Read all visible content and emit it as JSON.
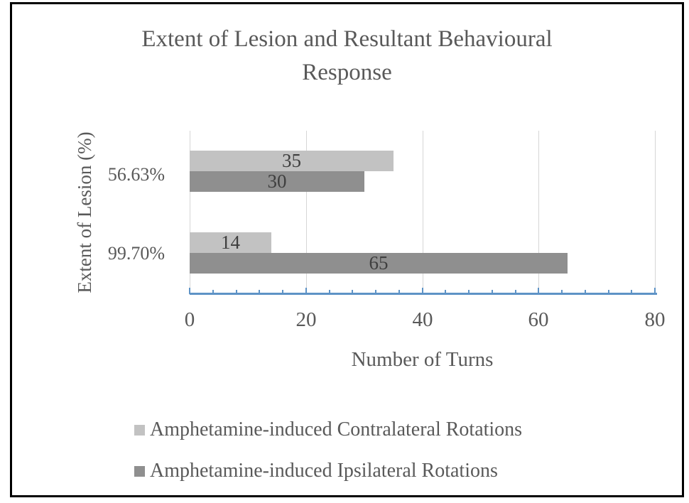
{
  "chart_data": {
    "type": "bar",
    "orientation": "horizontal",
    "title": "Extent of Lesion and Resultant Behavioural Response",
    "title_lines": [
      "Extent of Lesion and Resultant Behavioural",
      "Response"
    ],
    "categories": [
      "56.63%",
      "99.70%"
    ],
    "series": [
      {
        "name": "Amphetamine-induced Contralateral Rotations",
        "values": [
          35,
          14
        ],
        "color": "#c2c2c2"
      },
      {
        "name": "Amphetamine-induced Ipsilateral Rotations",
        "values": [
          30,
          65
        ],
        "color": "#8f8f8f"
      }
    ],
    "data_labels": [
      [
        "35",
        "14"
      ],
      [
        "30",
        "65"
      ]
    ],
    "xlabel": "Number of Turns",
    "ylabel": "Extent of Lesion (%)",
    "xlim": [
      0,
      80
    ],
    "x_ticks": [
      0,
      20,
      40,
      60,
      80
    ],
    "x_minor_unit": 4,
    "grid": "vertical-major",
    "legend_position": "bottom",
    "colors": {
      "series_light": "#c2c2c2",
      "series_dark": "#8f8f8f",
      "axis_line": "#5e93c6",
      "gridline": "#d6d6d6",
      "text": "#595959",
      "data_label": "#3f3f3f",
      "frame_border": "#000000"
    }
  }
}
